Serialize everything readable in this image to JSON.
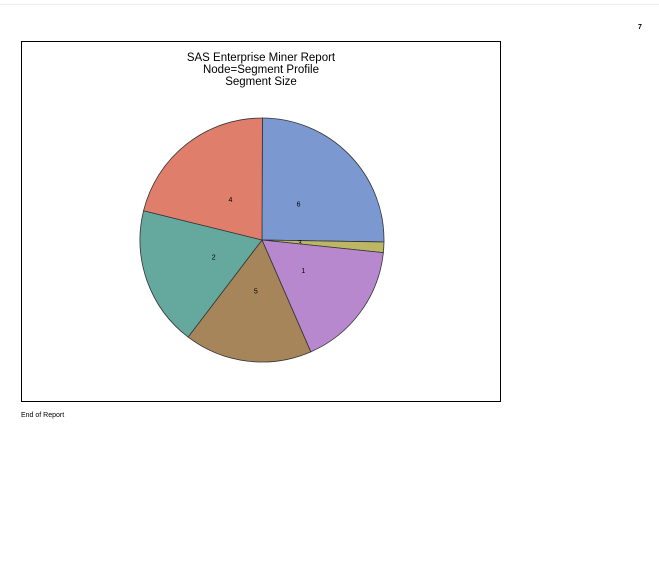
{
  "page": {
    "number": "7"
  },
  "chart_data": {
    "type": "pie",
    "title": "SAS Enterprise Miner Report",
    "subtitle": "Node=Segment Profile",
    "subtitle2": "Segment Size",
    "slices": [
      {
        "label": "6",
        "value": 25.2,
        "color": "#7b98d1"
      },
      {
        "label": "3",
        "value": 1.4,
        "color": "#bdb765"
      },
      {
        "label": "1",
        "value": 16.8,
        "color": "#b888cf"
      },
      {
        "label": "5",
        "value": 16.9,
        "color": "#a6855a"
      },
      {
        "label": "2",
        "value": 18.5,
        "color": "#64a89e"
      },
      {
        "label": "4",
        "value": 21.2,
        "color": "#e07e6c"
      }
    ]
  },
  "footer": {
    "text": "End of Report"
  }
}
